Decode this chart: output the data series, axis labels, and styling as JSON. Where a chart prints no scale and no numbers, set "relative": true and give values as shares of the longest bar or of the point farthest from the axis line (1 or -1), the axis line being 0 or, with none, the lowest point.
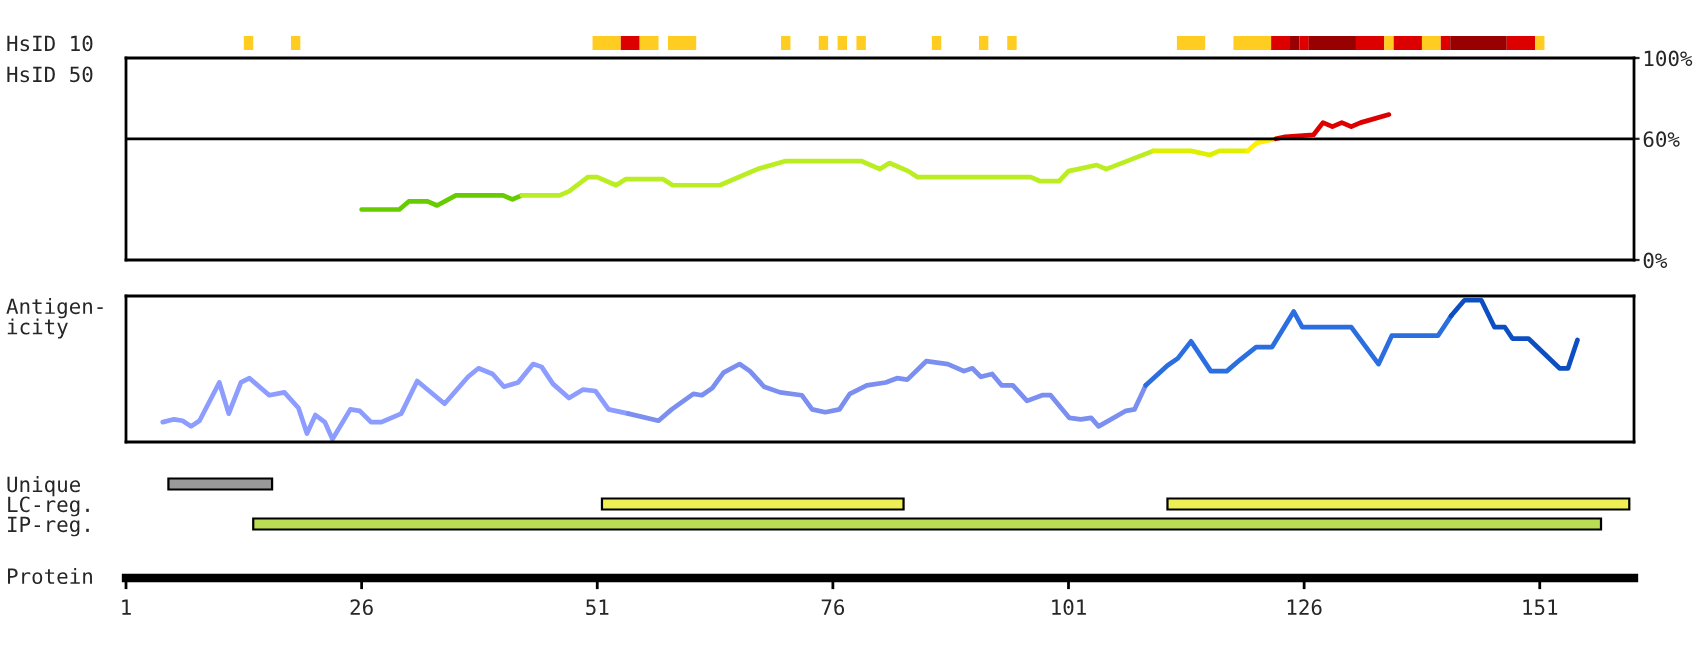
{
  "chart_data": [
    {
      "type": "bar",
      "orientation": "horizontal",
      "categories": [
        "HsID 10"
      ],
      "tick_labels": "y",
      "xlim": [
        1,
        161
      ],
      "series": [
        {
          "color": "#ffcc22",
          "values": [
            1
          ],
          "base": [
            13.5
          ]
        },
        {
          "color": "#ffcc22",
          "values": [
            1
          ],
          "base": [
            18.5
          ]
        },
        {
          "color": "#ffcc22",
          "values": [
            3
          ],
          "base": [
            50.5
          ]
        },
        {
          "color": "#dd0000",
          "values": [
            2
          ],
          "base": [
            53.5
          ]
        },
        {
          "color": "#ffcc22",
          "values": [
            2
          ],
          "base": [
            55.5
          ]
        },
        {
          "color": "#ffcc22",
          "values": [
            3
          ],
          "base": [
            58.5
          ]
        },
        {
          "color": "#ffcc22",
          "values": [
            1
          ],
          "base": [
            70.5
          ]
        },
        {
          "color": "#ffcc22",
          "values": [
            1
          ],
          "base": [
            74.5
          ]
        },
        {
          "color": "#ffcc22",
          "values": [
            1
          ],
          "base": [
            76.5
          ]
        },
        {
          "color": "#ffcc22",
          "values": [
            1
          ],
          "base": [
            78.5
          ]
        },
        {
          "color": "#ffcc22",
          "values": [
            1
          ],
          "base": [
            86.5
          ]
        },
        {
          "color": "#ffcc22",
          "values": [
            1
          ],
          "base": [
            91.5
          ]
        },
        {
          "color": "#ffcc22",
          "values": [
            1
          ],
          "base": [
            94.5
          ]
        },
        {
          "color": "#ffcc22",
          "values": [
            3
          ],
          "base": [
            112.5
          ]
        },
        {
          "color": "#ffcc22",
          "values": [
            4
          ],
          "base": [
            118.5
          ]
        },
        {
          "color": "#dd0000",
          "values": [
            2
          ],
          "base": [
            122.5
          ]
        },
        {
          "color": "#990000",
          "values": [
            1
          ],
          "base": [
            124.5
          ]
        },
        {
          "color": "#dd0000",
          "values": [
            1
          ],
          "base": [
            125.5
          ]
        },
        {
          "color": "#990000",
          "values": [
            5
          ],
          "base": [
            126.5
          ]
        },
        {
          "color": "#dd0000",
          "values": [
            3
          ],
          "base": [
            131.5
          ]
        },
        {
          "color": "#ffcc22",
          "values": [
            1
          ],
          "base": [
            134.5
          ]
        },
        {
          "color": "#dd0000",
          "values": [
            3
          ],
          "base": [
            135.5
          ]
        },
        {
          "color": "#ffcc22",
          "values": [
            2
          ],
          "base": [
            138.5
          ]
        },
        {
          "color": "#dd0000",
          "values": [
            1
          ],
          "base": [
            140.5
          ]
        },
        {
          "color": "#990000",
          "values": [
            6
          ],
          "base": [
            141.5
          ]
        },
        {
          "color": "#dd0000",
          "values": [
            3
          ],
          "base": [
            147.5
          ]
        },
        {
          "color": "#ffcc22",
          "values": [
            1
          ],
          "base": [
            150.5
          ]
        }
      ]
    },
    {
      "type": "line",
      "ylabel": "HsID 50",
      "tick_labels": "y",
      "xlim": [
        1,
        161
      ],
      "ylim": [
        0,
        100
      ],
      "yticks": [
        {
          "value": 0,
          "label": "0%"
        },
        {
          "value": 60,
          "label": "60%"
        },
        {
          "value": 100,
          "label": "100%"
        }
      ],
      "ref_lines": [
        {
          "axis": "y",
          "value": 60,
          "color": "#000000"
        }
      ],
      "series": [
        {
          "color": "#66cc00",
          "x": [
            26,
            30,
            31,
            33,
            34,
            36,
            41,
            42,
            43
          ],
          "values": [
            25,
            25,
            29,
            29,
            27,
            32,
            32,
            30,
            32
          ]
        },
        {
          "color": "#bbee22",
          "x": [
            43,
            47,
            48,
            50,
            51,
            53,
            54,
            58,
            59,
            64,
            68,
            71,
            79,
            81,
            82,
            84,
            85,
            97,
            98,
            100,
            101,
            104,
            105,
            110
          ],
          "values": [
            32,
            32,
            34,
            41,
            41,
            37,
            40,
            40,
            37,
            37,
            45,
            49,
            49,
            45,
            48,
            44,
            41,
            41,
            39,
            39,
            44,
            47,
            45,
            54
          ]
        },
        {
          "color": "#ddf000",
          "x": [
            110,
            114,
            116,
            117,
            120
          ],
          "values": [
            54,
            54,
            52,
            54,
            54
          ]
        },
        {
          "color": "#ffee00",
          "x": [
            120,
            121,
            123
          ],
          "values": [
            54,
            58,
            60
          ]
        },
        {
          "color": "#dd0000",
          "x": [
            123,
            124,
            127,
            128,
            129,
            130,
            131,
            132,
            135
          ],
          "values": [
            60,
            61,
            62,
            68,
            66,
            68,
            66,
            68,
            72
          ]
        }
      ]
    },
    {
      "type": "line",
      "ylabel": "Antigen-\nicity",
      "relative": true,
      "tick_labels": false,
      "xlim": [
        1,
        161
      ],
      "series": [
        {
          "color": "#8c9cff",
          "x": [
            4.9,
            6.1,
            7.0,
            7.9,
            8.8,
            10.9,
            11.9,
            13.2,
            14.1,
            16.2,
            17.8,
            19.3,
            20.2,
            21.1,
            22.1,
            22.9,
            24.8,
            25.8,
            27.0,
            28.1,
            30.2,
            31.9,
            34.8,
            37.3,
            38.4,
            39.9,
            41.1,
            42.6,
            44.2,
            45.1,
            46.3,
            48.0,
            49.5,
            50.8,
            52.2,
            54.3
          ],
          "values": [
            0.14,
            0.16,
            0.15,
            0.11,
            0.15,
            0.42,
            0.2,
            0.42,
            0.45,
            0.33,
            0.35,
            0.24,
            0.06,
            0.19,
            0.14,
            0.02,
            0.23,
            0.22,
            0.14,
            0.14,
            0.2,
            0.43,
            0.27,
            0.46,
            0.52,
            0.48,
            0.39,
            0.42,
            0.55,
            0.53,
            0.41,
            0.31,
            0.37,
            0.36,
            0.23,
            0.2
          ]
        },
        {
          "color": "#7b8ff0",
          "x": [
            54.3,
            57.5,
            58.9,
            61.2,
            62.1,
            63.2,
            64.4,
            66.1,
            67.2,
            68.7,
            70.4,
            72.7,
            73.8,
            75.2,
            76.7,
            77.8,
            79.6,
            81.6,
            82.8,
            83.9,
            85.9,
            88.2,
            89.9,
            90.8,
            91.7,
            92.9,
            93.9,
            95.1,
            96.6,
            98.2,
            99.1,
            101.1,
            102.3,
            103.4,
            104.2,
            107.1,
            108.0,
            109.2
          ],
          "values": [
            0.2,
            0.15,
            0.23,
            0.34,
            0.33,
            0.38,
            0.49,
            0.55,
            0.5,
            0.39,
            0.35,
            0.33,
            0.23,
            0.21,
            0.23,
            0.34,
            0.4,
            0.42,
            0.45,
            0.44,
            0.57,
            0.55,
            0.5,
            0.52,
            0.46,
            0.48,
            0.4,
            0.4,
            0.29,
            0.33,
            0.33,
            0.17,
            0.16,
            0.17,
            0.11,
            0.22,
            0.23,
            0.4
          ]
        },
        {
          "color": "#2a6ee0",
          "x": [
            109.2,
            111.5,
            112.6,
            114.0,
            116.1,
            117.8,
            119.2,
            120.9,
            122.6,
            124.9,
            125.8,
            131.0,
            133.9,
            135.3,
            140.2,
            141.6
          ],
          "values": [
            0.4,
            0.54,
            0.59,
            0.71,
            0.5,
            0.5,
            0.58,
            0.67,
            0.67,
            0.92,
            0.81,
            0.81,
            0.55,
            0.75,
            0.75,
            0.89
          ]
        },
        {
          "color": "#0d4fc0",
          "x": [
            141.6,
            143.0,
            144.8,
            146.2,
            147.3,
            148.1,
            149.8,
            153.1,
            154.0,
            155.0
          ],
          "values": [
            0.89,
            1,
            1,
            0.81,
            0.81,
            0.73,
            0.73,
            0.52,
            0.52,
            0.72
          ]
        }
      ]
    },
    {
      "type": "bar",
      "orientation": "horizontal",
      "xlabel": "Protein",
      "categories": [
        "Unique",
        "LC-reg.",
        "IP-reg."
      ],
      "xlim": [
        1,
        161
      ],
      "xticks": [
        1,
        26,
        51,
        76,
        101,
        126,
        151
      ],
      "series": [
        {
          "color": "#999999",
          "values": [
            11,
            null,
            null
          ],
          "base": [
            5.5,
            null,
            null
          ]
        },
        {
          "color": "#eeee55",
          "values": [
            null,
            32,
            null
          ],
          "base": [
            null,
            51.5,
            null
          ]
        },
        {
          "color": "#eeee55",
          "values": [
            null,
            49,
            null
          ],
          "base": [
            null,
            111.5,
            null
          ]
        },
        {
          "color": "#bbdd55",
          "values": [
            null,
            null,
            143
          ],
          "base": [
            null,
            null,
            14.5
          ]
        }
      ]
    }
  ]
}
